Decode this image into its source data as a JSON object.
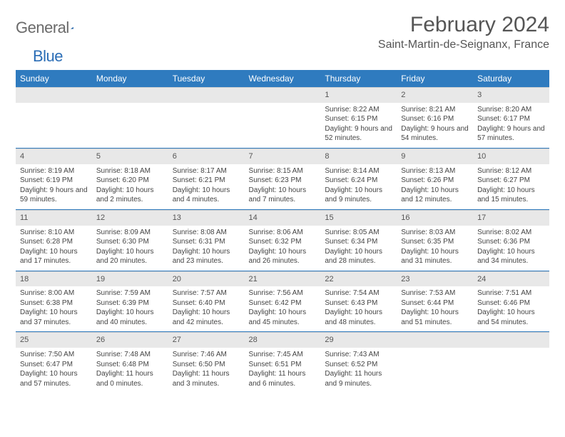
{
  "logo": {
    "text_gray": "General",
    "text_blue": "Blue"
  },
  "title": "February 2024",
  "location": "Saint-Martin-de-Seignanx, France",
  "colors": {
    "header_bg": "#2f7bbf",
    "header_fg": "#ffffff",
    "daynum_bg": "#e8e8e8",
    "rule": "#2f7bbf",
    "text": "#444444",
    "logo_gray": "#6a6a6a",
    "logo_blue": "#2a6db6"
  },
  "weekdays": [
    "Sunday",
    "Monday",
    "Tuesday",
    "Wednesday",
    "Thursday",
    "Friday",
    "Saturday"
  ],
  "weeks": [
    [
      {
        "n": "",
        "sr": "",
        "ss": "",
        "dl": ""
      },
      {
        "n": "",
        "sr": "",
        "ss": "",
        "dl": ""
      },
      {
        "n": "",
        "sr": "",
        "ss": "",
        "dl": ""
      },
      {
        "n": "",
        "sr": "",
        "ss": "",
        "dl": ""
      },
      {
        "n": "1",
        "sr": "Sunrise: 8:22 AM",
        "ss": "Sunset: 6:15 PM",
        "dl": "Daylight: 9 hours and 52 minutes."
      },
      {
        "n": "2",
        "sr": "Sunrise: 8:21 AM",
        "ss": "Sunset: 6:16 PM",
        "dl": "Daylight: 9 hours and 54 minutes."
      },
      {
        "n": "3",
        "sr": "Sunrise: 8:20 AM",
        "ss": "Sunset: 6:17 PM",
        "dl": "Daylight: 9 hours and 57 minutes."
      }
    ],
    [
      {
        "n": "4",
        "sr": "Sunrise: 8:19 AM",
        "ss": "Sunset: 6:19 PM",
        "dl": "Daylight: 9 hours and 59 minutes."
      },
      {
        "n": "5",
        "sr": "Sunrise: 8:18 AM",
        "ss": "Sunset: 6:20 PM",
        "dl": "Daylight: 10 hours and 2 minutes."
      },
      {
        "n": "6",
        "sr": "Sunrise: 8:17 AM",
        "ss": "Sunset: 6:21 PM",
        "dl": "Daylight: 10 hours and 4 minutes."
      },
      {
        "n": "7",
        "sr": "Sunrise: 8:15 AM",
        "ss": "Sunset: 6:23 PM",
        "dl": "Daylight: 10 hours and 7 minutes."
      },
      {
        "n": "8",
        "sr": "Sunrise: 8:14 AM",
        "ss": "Sunset: 6:24 PM",
        "dl": "Daylight: 10 hours and 9 minutes."
      },
      {
        "n": "9",
        "sr": "Sunrise: 8:13 AM",
        "ss": "Sunset: 6:26 PM",
        "dl": "Daylight: 10 hours and 12 minutes."
      },
      {
        "n": "10",
        "sr": "Sunrise: 8:12 AM",
        "ss": "Sunset: 6:27 PM",
        "dl": "Daylight: 10 hours and 15 minutes."
      }
    ],
    [
      {
        "n": "11",
        "sr": "Sunrise: 8:10 AM",
        "ss": "Sunset: 6:28 PM",
        "dl": "Daylight: 10 hours and 17 minutes."
      },
      {
        "n": "12",
        "sr": "Sunrise: 8:09 AM",
        "ss": "Sunset: 6:30 PM",
        "dl": "Daylight: 10 hours and 20 minutes."
      },
      {
        "n": "13",
        "sr": "Sunrise: 8:08 AM",
        "ss": "Sunset: 6:31 PM",
        "dl": "Daylight: 10 hours and 23 minutes."
      },
      {
        "n": "14",
        "sr": "Sunrise: 8:06 AM",
        "ss": "Sunset: 6:32 PM",
        "dl": "Daylight: 10 hours and 26 minutes."
      },
      {
        "n": "15",
        "sr": "Sunrise: 8:05 AM",
        "ss": "Sunset: 6:34 PM",
        "dl": "Daylight: 10 hours and 28 minutes."
      },
      {
        "n": "16",
        "sr": "Sunrise: 8:03 AM",
        "ss": "Sunset: 6:35 PM",
        "dl": "Daylight: 10 hours and 31 minutes."
      },
      {
        "n": "17",
        "sr": "Sunrise: 8:02 AM",
        "ss": "Sunset: 6:36 PM",
        "dl": "Daylight: 10 hours and 34 minutes."
      }
    ],
    [
      {
        "n": "18",
        "sr": "Sunrise: 8:00 AM",
        "ss": "Sunset: 6:38 PM",
        "dl": "Daylight: 10 hours and 37 minutes."
      },
      {
        "n": "19",
        "sr": "Sunrise: 7:59 AM",
        "ss": "Sunset: 6:39 PM",
        "dl": "Daylight: 10 hours and 40 minutes."
      },
      {
        "n": "20",
        "sr": "Sunrise: 7:57 AM",
        "ss": "Sunset: 6:40 PM",
        "dl": "Daylight: 10 hours and 42 minutes."
      },
      {
        "n": "21",
        "sr": "Sunrise: 7:56 AM",
        "ss": "Sunset: 6:42 PM",
        "dl": "Daylight: 10 hours and 45 minutes."
      },
      {
        "n": "22",
        "sr": "Sunrise: 7:54 AM",
        "ss": "Sunset: 6:43 PM",
        "dl": "Daylight: 10 hours and 48 minutes."
      },
      {
        "n": "23",
        "sr": "Sunrise: 7:53 AM",
        "ss": "Sunset: 6:44 PM",
        "dl": "Daylight: 10 hours and 51 minutes."
      },
      {
        "n": "24",
        "sr": "Sunrise: 7:51 AM",
        "ss": "Sunset: 6:46 PM",
        "dl": "Daylight: 10 hours and 54 minutes."
      }
    ],
    [
      {
        "n": "25",
        "sr": "Sunrise: 7:50 AM",
        "ss": "Sunset: 6:47 PM",
        "dl": "Daylight: 10 hours and 57 minutes."
      },
      {
        "n": "26",
        "sr": "Sunrise: 7:48 AM",
        "ss": "Sunset: 6:48 PM",
        "dl": "Daylight: 11 hours and 0 minutes."
      },
      {
        "n": "27",
        "sr": "Sunrise: 7:46 AM",
        "ss": "Sunset: 6:50 PM",
        "dl": "Daylight: 11 hours and 3 minutes."
      },
      {
        "n": "28",
        "sr": "Sunrise: 7:45 AM",
        "ss": "Sunset: 6:51 PM",
        "dl": "Daylight: 11 hours and 6 minutes."
      },
      {
        "n": "29",
        "sr": "Sunrise: 7:43 AM",
        "ss": "Sunset: 6:52 PM",
        "dl": "Daylight: 11 hours and 9 minutes."
      },
      {
        "n": "",
        "sr": "",
        "ss": "",
        "dl": ""
      },
      {
        "n": "",
        "sr": "",
        "ss": "",
        "dl": ""
      }
    ]
  ]
}
